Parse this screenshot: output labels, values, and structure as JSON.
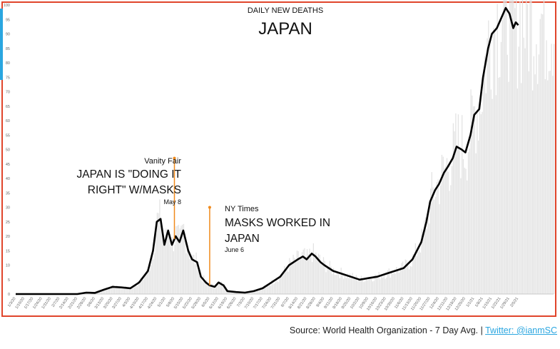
{
  "chart_data": {
    "type": "line",
    "title": "JAPAN",
    "subtitle": "DAILY NEW DEATHS",
    "xlabel": "",
    "ylabel": "",
    "ylim": [
      0,
      100
    ],
    "yticks": [
      0,
      5,
      10,
      15,
      20,
      25,
      30,
      35,
      40,
      45,
      50,
      55,
      60,
      65,
      70,
      75,
      80,
      85,
      90,
      95,
      100
    ],
    "grid": false,
    "x_tick_labels": [
      "1/3/20",
      "1/10/20",
      "1/17/20",
      "1/24/20",
      "1/31/20",
      "2/7/20",
      "2/14/20",
      "2/21/20",
      "2/28/20",
      "3/6/20",
      "3/13/20",
      "3/20/20",
      "3/27/20",
      "4/3/20",
      "4/10/20",
      "4/17/20",
      "4/24/20",
      "5/1/20",
      "5/8/20",
      "5/15/20",
      "5/22/20",
      "5/29/20",
      "6/5/20",
      "6/12/20",
      "6/19/20",
      "6/26/20",
      "7/3/20",
      "7/10/20",
      "7/17/20",
      "7/24/20",
      "7/31/20",
      "8/7/20",
      "8/14/20",
      "8/21/20",
      "8/28/20",
      "9/4/20",
      "9/11/20",
      "9/18/20",
      "9/25/20",
      "10/2/20",
      "10/9/20",
      "10/16/20",
      "10/23/20",
      "10/30/20",
      "11/6/20",
      "11/13/20",
      "11/20/20",
      "11/27/20",
      "12/4/20",
      "12/11/20",
      "12/18/20",
      "12/25/20",
      "1/1/21",
      "1/8/21",
      "1/15/21",
      "1/22/21",
      "1/29/21",
      "2/5/21"
    ],
    "series": [
      {
        "name": "",
        "color": "#000000",
        "x": [
          "1/3/20",
          "1/31/20",
          "2/21/20",
          "2/28/20",
          "3/6/20",
          "3/13/20",
          "3/20/20",
          "3/27/20",
          "4/3/20",
          "4/10/20",
          "4/17/20",
          "4/21/20",
          "4/24/20",
          "4/27/20",
          "4/30/20",
          "5/3/20",
          "5/6/20",
          "5/9/20",
          "5/12/20",
          "5/15/20",
          "5/19/20",
          "5/22/20",
          "5/26/20",
          "5/29/20",
          "6/2/20",
          "6/5/20",
          "6/9/20",
          "6/12/20",
          "6/16/20",
          "6/19/20",
          "6/26/20",
          "7/3/20",
          "7/10/20",
          "7/17/20",
          "7/24/20",
          "7/31/20",
          "8/7/20",
          "8/14/20",
          "8/18/20",
          "8/21/20",
          "8/25/20",
          "8/28/20",
          "9/1/20",
          "9/4/20",
          "9/11/20",
          "9/18/20",
          "9/25/20",
          "10/2/20",
          "10/9/20",
          "10/16/20",
          "10/23/20",
          "10/30/20",
          "11/6/20",
          "11/13/20",
          "11/20/20",
          "11/24/20",
          "11/27/20",
          "12/1/20",
          "12/4/20",
          "12/8/20",
          "12/11/20",
          "12/15/20",
          "12/18/20",
          "12/22/20",
          "12/25/20",
          "12/29/20",
          "1/1/21",
          "1/5/21",
          "1/8/21",
          "1/12/21",
          "1/15/21",
          "1/19/21",
          "1/22/21",
          "1/26/21",
          "1/29/21",
          "2/1/21",
          "2/3/21",
          "2/5/21"
        ],
        "values": [
          0,
          0,
          0,
          0.5,
          0.4,
          1.5,
          2.5,
          2.3,
          2,
          4,
          8,
          15,
          25,
          26,
          17,
          22,
          17,
          20,
          18,
          22,
          15,
          12,
          11,
          6,
          4,
          3,
          2.5,
          4,
          3,
          1,
          0.7,
          0.5,
          1,
          2,
          4,
          6,
          10,
          12,
          13,
          12,
          14,
          13,
          11,
          10,
          8,
          7,
          6,
          5,
          5.5,
          6,
          7,
          8,
          9,
          12,
          18,
          25,
          32,
          36,
          38,
          42,
          44,
          47,
          51,
          50,
          49,
          55,
          62,
          64,
          75,
          85,
          90,
          92,
          95,
          99,
          97,
          92,
          94,
          93
        ]
      }
    ],
    "annotations": [
      {
        "x": "5/8/20",
        "source": "Vanity Fair",
        "headline": "JAPAN IS \"DOING IT RIGHT\" W/MASKS",
        "date": "May 8",
        "line_top_value": 47
      },
      {
        "x": "6/5/20",
        "source": "NY Times",
        "headline": "MASKS WORKED IN JAPAN",
        "date": "June 6",
        "line_top_value": 30
      }
    ],
    "annotation_color": "#f08a1c",
    "bar_color": "#e2e2e2"
  },
  "annotations_text": {
    "vf_source": "Vanity Fair",
    "vf_line1": "JAPAN IS \"DOING IT",
    "vf_line2": "RIGHT\" W/MASKS",
    "vf_date": "May 8",
    "ny_source": "NY Times",
    "ny_line1": "MASKS WORKED IN",
    "ny_line2": "JAPAN",
    "ny_date": "June 6"
  },
  "footer": {
    "source_text": "Source: World Health Organization - 7 Day Avg. | ",
    "twitter_text": "Twitter: @ianmSC"
  },
  "colors": {
    "frame": "#e0452b",
    "accent_blue": "#2aa6e0"
  }
}
